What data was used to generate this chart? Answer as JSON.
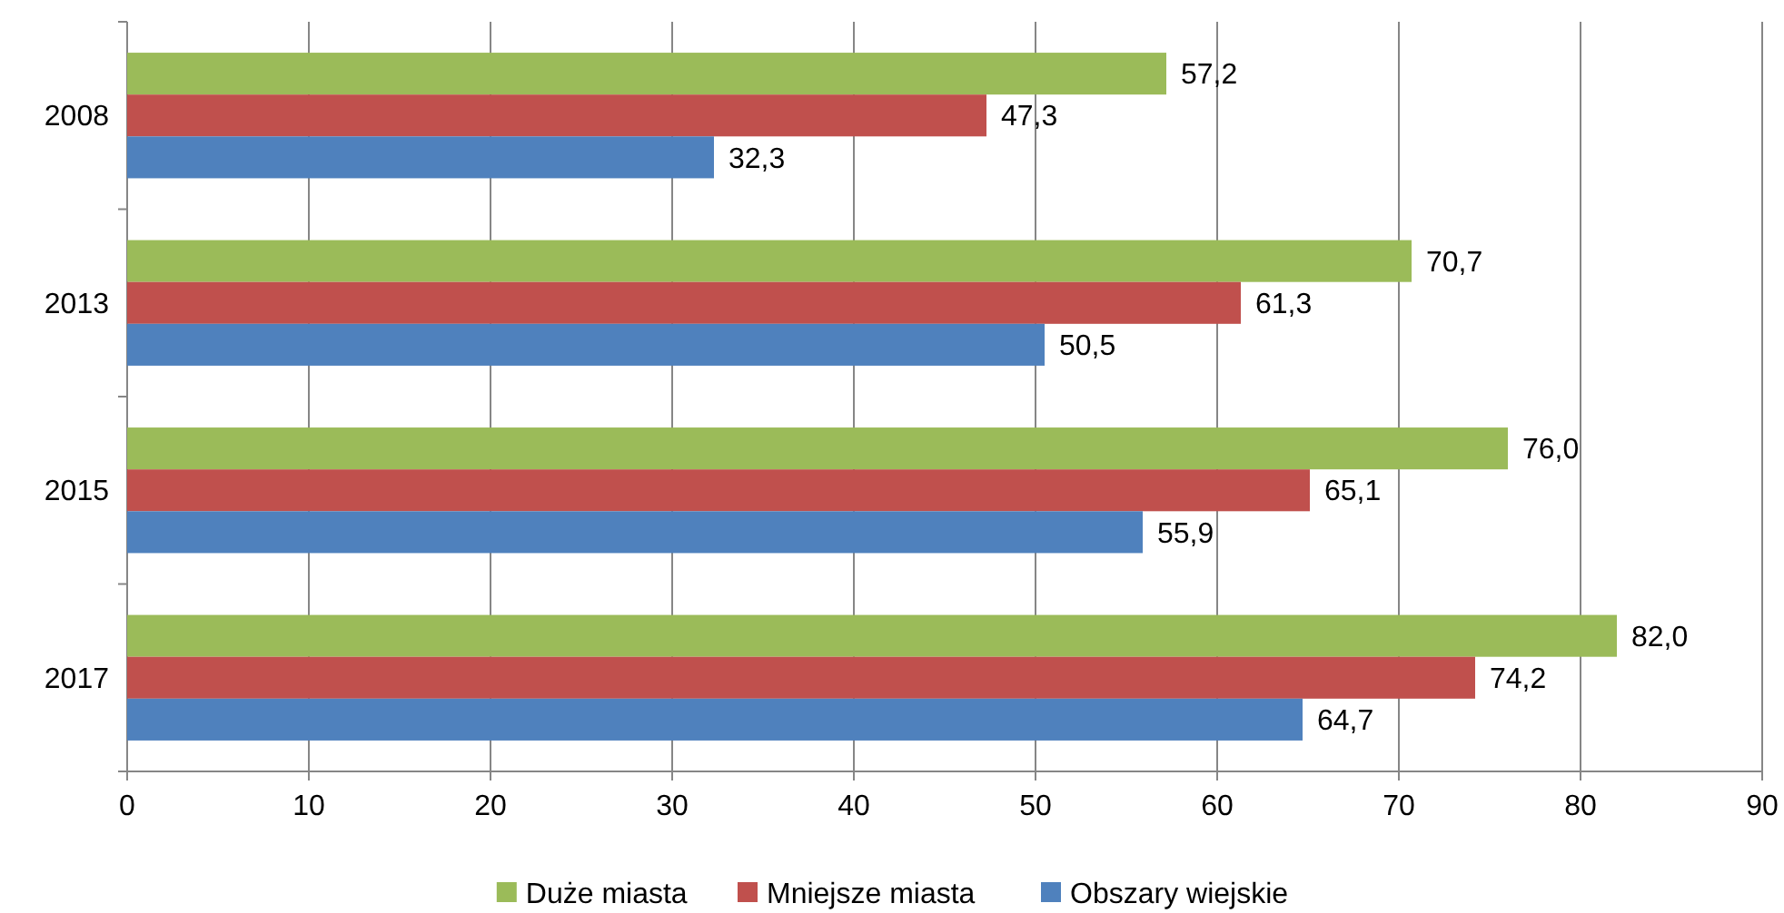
{
  "chart_data": {
    "type": "bar",
    "orientation": "horizontal",
    "categories": [
      "2008",
      "2013",
      "2015",
      "2017"
    ],
    "series": [
      {
        "name": "Duże miasta",
        "color": "#9bbb59",
        "values": [
          57.2,
          70.7,
          76.0,
          82.0
        ],
        "value_labels": [
          "57,2",
          "70,7",
          "76,0",
          "82,0"
        ]
      },
      {
        "name": "Mniejsze miasta",
        "color": "#c0504d",
        "values": [
          47.3,
          61.3,
          65.1,
          74.2
        ],
        "value_labels": [
          "47,3",
          "61,3",
          "65,1",
          "74,2"
        ]
      },
      {
        "name": "Obszary wiejskie",
        "color": "#4f81bd",
        "values": [
          32.3,
          50.5,
          55.9,
          64.7
        ],
        "value_labels": [
          "32,3",
          "50,5",
          "55,9",
          "64,7"
        ]
      }
    ],
    "xlim": [
      0,
      90
    ],
    "xticks": [
      0,
      10,
      20,
      30,
      40,
      50,
      60,
      70,
      80,
      90
    ],
    "grid": "x",
    "legend": "bottom"
  }
}
